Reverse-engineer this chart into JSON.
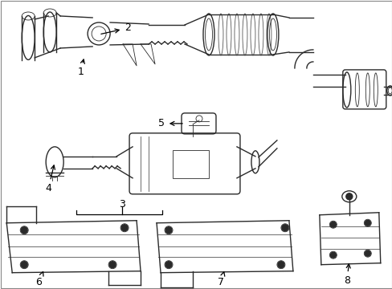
{
  "background_color": "#ffffff",
  "line_color": "#2a2a2a",
  "label_color": "#000000",
  "fig_width": 4.89,
  "fig_height": 3.6,
  "dpi": 100,
  "border_color": "#aaaaaa",
  "lw": 1.0,
  "lw_thin": 0.6,
  "lw_thick": 1.4
}
